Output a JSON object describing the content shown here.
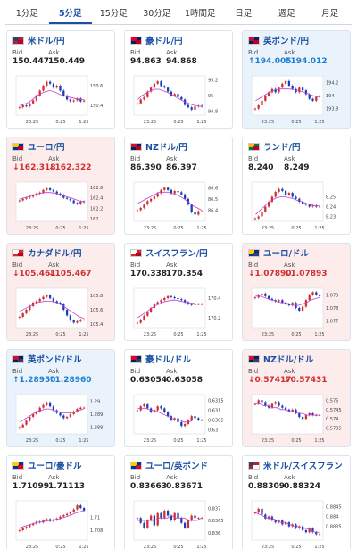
{
  "tabs": [
    {
      "label": "1分足",
      "active": false
    },
    {
      "label": "5分足",
      "active": true
    },
    {
      "label": "15分足",
      "active": false
    },
    {
      "label": "30分足",
      "active": false
    },
    {
      "label": "1時間足",
      "active": false
    },
    {
      "label": "日足",
      "active": false
    },
    {
      "label": "週足",
      "active": false
    },
    {
      "label": "月足",
      "active": false
    }
  ],
  "colors": {
    "up": "#d12f2f",
    "down": "#1a3fb5",
    "ma": "#c03fd0",
    "accent": "#1a4fa3"
  },
  "cards": [
    {
      "name": "米ドル/円",
      "flag": "us-jp-flag-icon",
      "bid_label": "Bid",
      "ask_label": "Ask",
      "bid": "150.447",
      "ask": "150.449",
      "dir": "",
      "bg": "none",
      "xticks": [
        "23:25",
        "0:25",
        "1:25"
      ],
      "yticks": [
        "150.6",
        "150.4"
      ],
      "ylim": [
        150.3,
        150.7
      ],
      "closes": [
        150.38,
        150.4,
        150.39,
        150.42,
        150.45,
        150.5,
        150.55,
        150.6,
        150.64,
        150.62,
        150.58,
        150.6,
        150.55,
        150.5,
        150.46,
        150.44,
        150.45,
        150.47,
        150.44,
        150.45
      ],
      "ma": [
        150.4,
        150.41,
        150.43,
        150.46,
        150.5,
        150.52,
        150.54,
        150.55,
        150.54,
        150.52,
        150.5,
        150.49,
        150.48,
        150.47,
        150.46,
        150.46
      ]
    },
    {
      "name": "豪ドル/円",
      "flag": "au-jp-flag-icon",
      "bid_label": "Bid",
      "ask_label": "Ask",
      "bid": "94.863",
      "ask": "94.868",
      "dir": "",
      "bg": "none",
      "xticks": [
        "23:25",
        "0:25",
        "1:25"
      ],
      "yticks": [
        "95.2",
        "95",
        "94.8"
      ],
      "ylim": [
        94.75,
        95.25
      ],
      "closes": [
        94.9,
        94.95,
        94.98,
        95.05,
        95.1,
        95.15,
        95.18,
        95.12,
        95.1,
        95.05,
        95.0,
        95.02,
        94.98,
        94.95,
        94.88,
        94.85,
        94.82,
        94.86,
        94.87,
        94.86
      ],
      "ma": [
        94.95,
        95.0,
        95.03,
        95.06,
        95.08,
        95.08,
        95.06,
        95.04,
        95.01,
        94.98,
        94.95,
        94.92,
        94.9,
        94.88,
        94.87,
        94.86
      ]
    },
    {
      "name": "英ポンド/円",
      "flag": "gb-jp-flag-icon",
      "bid_label": "Bid",
      "ask_label": "Ask",
      "bid": "↑194.005",
      "ask": "↑194.012",
      "dir": "up",
      "bg": "up",
      "xticks": [
        "23:25",
        "0:25",
        "1:25"
      ],
      "yticks": [
        "194.2",
        "194",
        "193.8"
      ],
      "ylim": [
        193.7,
        194.3
      ],
      "closes": [
        193.8,
        193.85,
        193.92,
        194.0,
        194.05,
        194.1,
        194.05,
        194.12,
        194.18,
        194.22,
        194.15,
        194.1,
        194.05,
        194.12,
        194.08,
        194.02,
        193.95,
        193.92,
        193.98,
        194.0
      ],
      "ma": [
        193.92,
        193.96,
        194.0,
        194.04,
        194.07,
        194.09,
        194.1,
        194.1,
        194.1,
        194.09,
        194.08,
        194.06,
        194.04,
        194.01,
        193.99,
        193.98
      ]
    },
    {
      "name": "ユーロ/円",
      "flag": "eu-jp-flag-icon",
      "bid_label": "Bid",
      "ask_label": "Ask",
      "bid": "↓162.318",
      "ask": "↓162.322",
      "dir": "down",
      "bg": "down",
      "xticks": [
        "23:25",
        "0:25",
        "1:25"
      ],
      "yticks": [
        "162.6",
        "162.4",
        "162.2",
        "162"
      ],
      "ylim": [
        161.95,
        162.7
      ],
      "closes": [
        162.35,
        162.38,
        162.4,
        162.42,
        162.45,
        162.48,
        162.5,
        162.55,
        162.58,
        162.55,
        162.52,
        162.48,
        162.45,
        162.4,
        162.38,
        162.35,
        162.3,
        162.28,
        162.33,
        162.32
      ],
      "ma": [
        162.38,
        162.4,
        162.42,
        162.45,
        162.47,
        162.49,
        162.5,
        162.5,
        162.49,
        162.47,
        162.45,
        162.42,
        162.4,
        162.37,
        162.34,
        162.33
      ]
    },
    {
      "name": "NZドル/円",
      "flag": "nz-jp-flag-icon",
      "bid_label": "Bid",
      "ask_label": "Ask",
      "bid": "86.390",
      "ask": "86.397",
      "dir": "",
      "bg": "none",
      "xticks": [
        "23:25",
        "0:25",
        "1:25"
      ],
      "yticks": [
        "86.6",
        "86.5",
        "86.4"
      ],
      "ylim": [
        86.3,
        86.65
      ],
      "closes": [
        86.4,
        86.42,
        86.45,
        86.48,
        86.5,
        86.52,
        86.55,
        86.58,
        86.6,
        86.58,
        86.55,
        86.57,
        86.56,
        86.54,
        86.5,
        86.45,
        86.38,
        86.36,
        86.39,
        86.39
      ],
      "ma": [
        86.46,
        86.48,
        86.5,
        86.52,
        86.54,
        86.56,
        86.56,
        86.56,
        86.55,
        86.54,
        86.52,
        86.5,
        86.47,
        86.44,
        86.42,
        86.4
      ]
    },
    {
      "name": "ランド/円",
      "flag": "za-jp-flag-icon",
      "bid_label": "Bid",
      "ask_label": "Ask",
      "bid": "8.240",
      "ask": "8.249",
      "dir": "",
      "bg": "none",
      "xticks": [
        "23:25",
        "0:25",
        "1:25"
      ],
      "yticks": [
        "8.25",
        "8.24",
        "8.23"
      ],
      "ylim": [
        8.225,
        8.265
      ],
      "closes": [
        8.228,
        8.23,
        8.235,
        8.24,
        8.245,
        8.25,
        8.255,
        8.258,
        8.256,
        8.252,
        8.254,
        8.25,
        8.248,
        8.245,
        8.243,
        8.242,
        8.24,
        8.241,
        8.24,
        8.24
      ],
      "ma": [
        8.232,
        8.236,
        8.24,
        8.244,
        8.247,
        8.249,
        8.25,
        8.25,
        8.249,
        8.248,
        8.246,
        8.245,
        8.243,
        8.242,
        8.241,
        8.241
      ]
    },
    {
      "name": "カナダドル/円",
      "flag": "ca-jp-flag-icon",
      "bid_label": "Bid",
      "ask_label": "Ask",
      "bid": "↓105.461",
      "ask": "↓105.467",
      "dir": "down",
      "bg": "down",
      "xticks": [
        "23:25",
        "0:25",
        "1:25"
      ],
      "yticks": [
        "105.8",
        "105.6",
        "105.4"
      ],
      "ylim": [
        105.35,
        105.9
      ],
      "closes": [
        105.5,
        105.55,
        105.6,
        105.65,
        105.7,
        105.72,
        105.75,
        105.78,
        105.8,
        105.76,
        105.72,
        105.7,
        105.68,
        105.6,
        105.52,
        105.45,
        105.42,
        105.44,
        105.46,
        105.46
      ],
      "ma": [
        105.58,
        105.61,
        105.64,
        105.67,
        105.7,
        105.71,
        105.72,
        105.72,
        105.71,
        105.69,
        105.66,
        105.62,
        105.58,
        105.54,
        105.5,
        105.48
      ]
    },
    {
      "name": "スイスフラン/円",
      "flag": "ch-jp-flag-icon",
      "bid_label": "Bid",
      "ask_label": "Ask",
      "bid": "170.338",
      "ask": "170.354",
      "dir": "",
      "bg": "none",
      "xticks": [
        "23:25",
        "0:25",
        "1:25"
      ],
      "yticks": [
        "170.4",
        "170.2"
      ],
      "ylim": [
        170.1,
        170.5
      ],
      "closes": [
        170.15,
        170.18,
        170.22,
        170.26,
        170.3,
        170.34,
        170.36,
        170.38,
        170.4,
        170.42,
        170.41,
        170.4,
        170.39,
        170.38,
        170.36,
        170.34,
        170.33,
        170.34,
        170.34,
        170.34
      ],
      "ma": [
        170.2,
        170.23,
        170.26,
        170.29,
        170.32,
        170.34,
        170.36,
        170.37,
        170.38,
        170.38,
        170.37,
        170.36,
        170.35,
        170.35,
        170.34,
        170.34
      ]
    },
    {
      "name": "ユーロ/ドル",
      "flag": "eu-us-flag-icon",
      "bid_label": "Bid",
      "ask_label": "Ask",
      "bid": "↓1.07890",
      "ask": "↓1.07893",
      "dir": "down",
      "bg": "down",
      "xticks": [
        "23:25",
        "0:25",
        "1:25"
      ],
      "yticks": [
        "1.079",
        "1.078",
        "1.077"
      ],
      "ylim": [
        1.0765,
        1.0795
      ],
      "closes": [
        1.0788,
        1.079,
        1.0791,
        1.0789,
        1.0787,
        1.0786,
        1.0785,
        1.0786,
        1.0784,
        1.0783,
        1.0782,
        1.0784,
        1.078,
        1.0778,
        1.0781,
        1.0786,
        1.079,
        1.0792,
        1.079,
        1.0789
      ],
      "ma": [
        1.0789,
        1.0789,
        1.0788,
        1.0787,
        1.0786,
        1.0785,
        1.0784,
        1.0784,
        1.0783,
        1.0782,
        1.0782,
        1.0783,
        1.0784,
        1.0786,
        1.0787,
        1.0788
      ]
    },
    {
      "name": "英ポンド/ドル",
      "flag": "gb-us-flag-icon",
      "bid_label": "Bid",
      "ask_label": "Ask",
      "bid": "↑1.28950",
      "ask": "↑1.28960",
      "dir": "up",
      "bg": "up",
      "xticks": [
        "23:25",
        "0:25",
        "1:25"
      ],
      "yticks": [
        "1.29",
        "1.289",
        "1.288"
      ],
      "ylim": [
        1.2875,
        1.2905
      ],
      "closes": [
        1.288,
        1.2882,
        1.2885,
        1.2888,
        1.289,
        1.2892,
        1.2895,
        1.2897,
        1.2899,
        1.2896,
        1.2893,
        1.2891,
        1.2889,
        1.2887,
        1.2888,
        1.289,
        1.2892,
        1.2894,
        1.2895,
        1.2895
      ],
      "ma": [
        1.2884,
        1.2886,
        1.2888,
        1.289,
        1.2892,
        1.2893,
        1.2894,
        1.2894,
        1.2893,
        1.2892,
        1.2891,
        1.2891,
        1.2891,
        1.2892,
        1.2893,
        1.2894
      ]
    },
    {
      "name": "豪ドル/ドル",
      "flag": "au-us-flag-icon",
      "bid_label": "Bid",
      "ask_label": "Ask",
      "bid": "0.63054",
      "ask": "0.63058",
      "dir": "",
      "bg": "none",
      "xticks": [
        "23:25",
        "0:25",
        "1:25"
      ],
      "yticks": [
        "0.6315",
        "0.631",
        "0.6305",
        "0.63"
      ],
      "ylim": [
        0.6298,
        0.6318
      ],
      "closes": [
        0.631,
        0.6312,
        0.6313,
        0.6311,
        0.6309,
        0.631,
        0.6312,
        0.6311,
        0.6309,
        0.6307,
        0.6305,
        0.6306,
        0.6304,
        0.6302,
        0.6303,
        0.6305,
        0.6307,
        0.6306,
        0.6305,
        0.6305
      ],
      "ma": [
        0.6311,
        0.6311,
        0.6311,
        0.631,
        0.631,
        0.6309,
        0.6308,
        0.6307,
        0.6306,
        0.6305,
        0.6305,
        0.6304,
        0.6304,
        0.6305,
        0.6305,
        0.6305
      ]
    },
    {
      "name": "NZドル/ドル",
      "flag": "nz-us-flag-icon",
      "bid_label": "Bid",
      "ask_label": "Ask",
      "bid": "↓0.57417",
      "ask": "↓0.57431",
      "dir": "down",
      "bg": "down",
      "xticks": [
        "23:25",
        "0:25",
        "1:25"
      ],
      "yticks": [
        "0.575",
        "0.5745",
        "0.574",
        "0.5735"
      ],
      "ylim": [
        0.5732,
        0.5753
      ],
      "closes": [
        0.5748,
        0.575,
        0.5749,
        0.5747,
        0.5746,
        0.5748,
        0.5749,
        0.5747,
        0.5746,
        0.5745,
        0.5744,
        0.5745,
        0.5743,
        0.5741,
        0.574,
        0.5742,
        0.5743,
        0.5742,
        0.5742,
        0.5742
      ],
      "ma": [
        0.5748,
        0.5748,
        0.5747,
        0.5747,
        0.5746,
        0.5746,
        0.5745,
        0.5745,
        0.5744,
        0.5744,
        0.5743,
        0.5743,
        0.5742,
        0.5742,
        0.5742,
        0.5742
      ]
    },
    {
      "name": "ユーロ/豪ドル",
      "flag": "eu-au-flag-icon",
      "bid_label": "Bid",
      "ask_label": "Ask",
      "bid": "1.71099",
      "ask": "1.71113",
      "dir": "",
      "bg": "none",
      "xticks": [
        "23:25",
        "0:25",
        "1:25"
      ],
      "yticks": [
        "1.71",
        "1.708"
      ],
      "ylim": [
        1.7065,
        1.7125
      ],
      "closes": [
        1.708,
        1.7083,
        1.7085,
        1.7088,
        1.709,
        1.7093,
        1.7092,
        1.7095,
        1.7097,
        1.7094,
        1.7096,
        1.7098,
        1.7101,
        1.7103,
        1.7105,
        1.7108,
        1.7112,
        1.7118,
        1.7114,
        1.711
      ],
      "ma": [
        1.7084,
        1.7086,
        1.7088,
        1.709,
        1.7092,
        1.7093,
        1.7094,
        1.7095,
        1.7096,
        1.7097,
        1.7099,
        1.7101,
        1.7103,
        1.7106,
        1.7108,
        1.711
      ]
    },
    {
      "name": "ユーロ/英ポンド",
      "flag": "eu-gb-flag-icon",
      "bid_label": "Bid",
      "ask_label": "Ask",
      "bid": "0.83663",
      "ask": "0.83671",
      "dir": "",
      "bg": "none",
      "xticks": [
        "23:25",
        "0:25",
        "1:25"
      ],
      "yticks": [
        "0.837",
        "0.8365",
        "0.836"
      ],
      "ylim": [
        0.8357,
        0.8373
      ],
      "closes": [
        0.8366,
        0.8364,
        0.8362,
        0.8365,
        0.8367,
        0.8363,
        0.8368,
        0.8366,
        0.8369,
        0.8367,
        0.8365,
        0.8368,
        0.8366,
        0.8364,
        0.8362,
        0.8365,
        0.8367,
        0.8366,
        0.8366,
        0.8366
      ],
      "ma": [
        0.8365,
        0.8365,
        0.8365,
        0.8365,
        0.8365,
        0.8366,
        0.8366,
        0.8366,
        0.8367,
        0.8366,
        0.8366,
        0.8366,
        0.8365,
        0.8365,
        0.8365,
        0.8366
      ]
    },
    {
      "name": "米ドル/スイスフラン",
      "flag": "us-ch-flag-icon",
      "bid_label": "Bid",
      "ask_label": "Ask",
      "bid": "0.88309",
      "ask": "0.88324",
      "dir": "",
      "bg": "none",
      "xticks": [
        "23:25",
        "0:25",
        "1:25"
      ],
      "yticks": [
        "0.8845",
        "0.884",
        "0.8835"
      ],
      "ylim": [
        0.8828,
        0.8848
      ],
      "closes": [
        0.8842,
        0.8844,
        0.8841,
        0.8839,
        0.884,
        0.8838,
        0.8837,
        0.8838,
        0.8836,
        0.8837,
        0.8835,
        0.8836,
        0.8834,
        0.8835,
        0.8833,
        0.8832,
        0.8834,
        0.8832,
        0.8831,
        0.8831
      ],
      "ma": [
        0.8842,
        0.8841,
        0.884,
        0.8839,
        0.8839,
        0.8838,
        0.8837,
        0.8837,
        0.8836,
        0.8835,
        0.8835,
        0.8834,
        0.8834,
        0.8833,
        0.8832,
        0.8832
      ]
    }
  ]
}
